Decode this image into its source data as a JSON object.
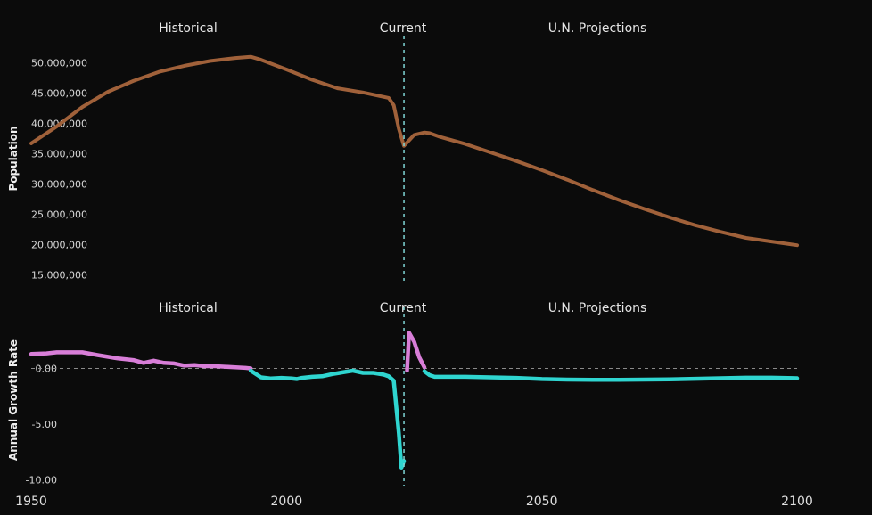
{
  "chart_data": [
    {
      "type": "line",
      "ylabel": "Population",
      "xlim": [
        1950,
        2100
      ],
      "ylim": [
        15000000,
        52000000
      ],
      "y_ticks": [
        {
          "value": 50000000,
          "label": "50,000,000"
        },
        {
          "value": 45000000,
          "label": "45,000,000"
        },
        {
          "value": 40000000,
          "label": "40,000,000"
        },
        {
          "value": 35000000,
          "label": "35,000,000"
        },
        {
          "value": 30000000,
          "label": "30,000,000"
        },
        {
          "value": 25000000,
          "label": "25,000,000"
        },
        {
          "value": 20000000,
          "label": "20,000,000"
        },
        {
          "value": 15000000,
          "label": "15,000,000"
        }
      ],
      "annotations": {
        "historical": "Historical",
        "current": "Current",
        "projections": "U.N. Projections"
      },
      "current_year": 2023,
      "grid": false,
      "series": [
        {
          "color": "#a0613a",
          "x": [
            1950,
            1955,
            1960,
            1965,
            1970,
            1975,
            1980,
            1985,
            1990,
            1993,
            1995,
            2000,
            2005,
            2010,
            2015,
            2020,
            2021,
            2022,
            2023,
            2025,
            2027,
            2028,
            2030,
            2035,
            2040,
            2045,
            2050,
            2055,
            2060,
            2065,
            2070,
            2075,
            2080,
            2085,
            2090,
            2095,
            2100
          ],
          "y": [
            36700000,
            39500000,
            42700000,
            45200000,
            47000000,
            48500000,
            49500000,
            50300000,
            50800000,
            51000000,
            50500000,
            48900000,
            47200000,
            45800000,
            45100000,
            44200000,
            43000000,
            39100000,
            36300000,
            38100000,
            38500000,
            38400000,
            37800000,
            36600000,
            35200000,
            33800000,
            32300000,
            30700000,
            29000000,
            27400000,
            25900000,
            24500000,
            23200000,
            22100000,
            21100000,
            20500000,
            19900000
          ]
        }
      ]
    },
    {
      "type": "line",
      "ylabel": "Annual Growth Rate",
      "xlim": [
        1950,
        2100
      ],
      "ylim": [
        -10.8,
        3.5
      ],
      "y_ticks": [
        {
          "value": 0,
          "label": "0.00"
        },
        {
          "value": -5,
          "label": "-5.00"
        },
        {
          "value": -10,
          "label": "-10.00"
        }
      ],
      "x_ticks": [
        {
          "value": 1950,
          "label": "1950"
        },
        {
          "value": 2000,
          "label": "2000"
        },
        {
          "value": 2050,
          "label": "2050"
        },
        {
          "value": 2100,
          "label": "2100"
        }
      ],
      "annotations": {
        "historical": "Historical",
        "current": "Current",
        "projections": "U.N. Projections"
      },
      "current_year": 2023,
      "zero_line": true,
      "grid": false,
      "series": [
        {
          "color": "#d87ed8",
          "condition": "positive",
          "x": [
            1950,
            1953,
            1955,
            1960,
            1963,
            1967,
            1970,
            1972,
            1974,
            1976,
            1978,
            1980,
            1982,
            1984,
            1986,
            1988,
            1990,
            1992,
            1993
          ],
          "y": [
            1.3,
            1.35,
            1.45,
            1.45,
            1.2,
            0.9,
            0.75,
            0.5,
            0.7,
            0.5,
            0.45,
            0.25,
            0.3,
            0.2,
            0.2,
            0.15,
            0.1,
            0.05,
            0.0
          ]
        },
        {
          "color": "#2fd5d0",
          "condition": "negative",
          "x": [
            1993,
            1995,
            1997,
            1999,
            2001,
            2002,
            2003,
            2005,
            2007,
            2009,
            2011,
            2013,
            2015,
            2017,
            2019,
            2020,
            2021,
            2022,
            2022.5,
            2023
          ],
          "y": [
            -0.2,
            -0.8,
            -0.9,
            -0.85,
            -0.9,
            -0.95,
            -0.85,
            -0.75,
            -0.7,
            -0.5,
            -0.35,
            -0.2,
            -0.4,
            -0.4,
            -0.55,
            -0.7,
            -1.1,
            -5.8,
            -8.9,
            -8.3
          ]
        },
        {
          "color": "#d87ed8",
          "condition": "positive",
          "x": [
            2023.6,
            2024,
            2025,
            2026,
            2027
          ],
          "y": [
            -0.2,
            3.2,
            2.4,
            1.0,
            0.1
          ]
        },
        {
          "color": "#2fd5d0",
          "condition": "negative",
          "x": [
            2027,
            2028,
            2029,
            2030,
            2035,
            2040,
            2045,
            2050,
            2055,
            2060,
            2065,
            2070,
            2075,
            2080,
            2085,
            2090,
            2095,
            2100
          ],
          "y": [
            -0.25,
            -0.6,
            -0.75,
            -0.75,
            -0.75,
            -0.8,
            -0.85,
            -0.95,
            -1.0,
            -1.02,
            -1.02,
            -1.0,
            -0.98,
            -0.93,
            -0.88,
            -0.83,
            -0.83,
            -0.88
          ]
        }
      ]
    }
  ]
}
